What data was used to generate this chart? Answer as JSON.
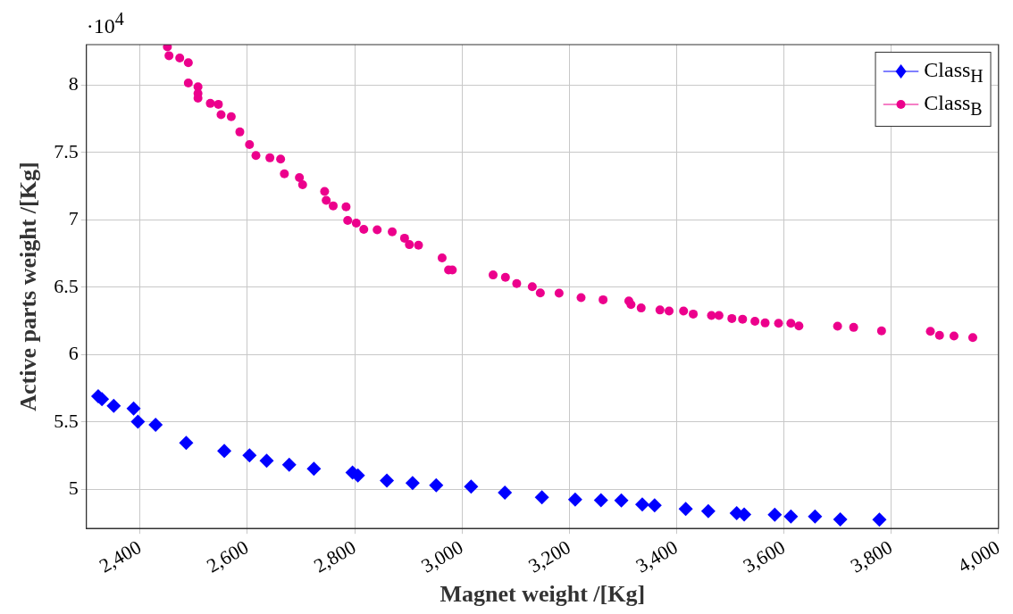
{
  "chart_data": {
    "type": "scatter",
    "xlabel": "Magnet weight /[Kg]",
    "ylabel": "Active parts weight /[Kg]",
    "annotations": [
      "·10$^{4}$"
    ],
    "xlim": [
      2300,
      4000
    ],
    "ylim": [
      4.71,
      8.3
    ],
    "xticks": [
      {
        "value": 2400,
        "label": "2,400"
      },
      {
        "value": 2600,
        "label": "2,600"
      },
      {
        "value": 2800,
        "label": "2,800"
      },
      {
        "value": 3000,
        "label": "3,000"
      },
      {
        "value": 3200,
        "label": "3,200"
      },
      {
        "value": 3400,
        "label": "3,400"
      },
      {
        "value": 3600,
        "label": "3,600"
      },
      {
        "value": 3800,
        "label": "3,800"
      },
      {
        "value": 4000,
        "label": "4,000"
      }
    ],
    "yticks": [
      5,
      5.5,
      6,
      6.5,
      7,
      7.5,
      8
    ],
    "grid": true,
    "legend": "top right",
    "series": [
      {
        "name": "Class$_{H}$",
        "color": "#0000ff",
        "marker": "diamond",
        "x": [
          2322,
          2329,
          2351,
          2388,
          2396,
          2429,
          2486,
          2557,
          2604,
          2636,
          2678,
          2724,
          2796,
          2806,
          2860,
          2908,
          2952,
          3017,
          3080,
          3149,
          3211,
          3259,
          3297,
          3336,
          3359,
          3417,
          3459,
          3512,
          3526,
          3583,
          3613,
          3658,
          3705,
          3778
        ],
        "values": [
          5.691,
          5.669,
          5.62,
          5.6,
          5.503,
          5.479,
          5.345,
          5.285,
          5.253,
          5.212,
          5.183,
          5.153,
          5.125,
          5.103,
          5.065,
          5.047,
          5.03,
          5.021,
          4.976,
          4.941,
          4.924,
          4.92,
          4.918,
          4.888,
          4.881,
          4.855,
          4.838,
          4.823,
          4.814,
          4.812,
          4.799,
          4.799,
          4.778,
          4.775
        ]
      },
      {
        "name": "Class$_{B}$",
        "color": "#ec008c",
        "marker": "circle",
        "x": [
          2451,
          2454,
          2474,
          2490,
          2490,
          2508,
          2508,
          2508,
          2531,
          2546,
          2551,
          2570,
          2586,
          2604,
          2616,
          2642,
          2662,
          2669,
          2697,
          2703,
          2744,
          2747,
          2760,
          2784,
          2787,
          2803,
          2817,
          2842,
          2870,
          2893,
          2902,
          2919,
          2963,
          2975,
          2982,
          3058,
          3081,
          3102,
          3131,
          3146,
          3181,
          3222,
          3263,
          3311,
          3315,
          3334,
          3369,
          3386,
          3413,
          3431,
          3465,
          3479,
          3503,
          3523,
          3546,
          3565,
          3590,
          3613,
          3628,
          3700,
          3730,
          3782,
          3873,
          3890,
          3917,
          3952
        ],
        "values": [
          8.283,
          8.218,
          8.201,
          8.166,
          8.015,
          7.987,
          7.937,
          7.903,
          7.864,
          7.857,
          7.78,
          7.765,
          7.652,
          7.559,
          7.477,
          7.46,
          7.451,
          7.341,
          7.313,
          7.261,
          7.211,
          7.145,
          7.104,
          7.097,
          6.996,
          6.976,
          6.929,
          6.926,
          6.911,
          6.864,
          6.816,
          6.812,
          6.717,
          6.628,
          6.628,
          6.591,
          6.574,
          6.527,
          6.504,
          6.458,
          6.456,
          6.423,
          6.407,
          6.398,
          6.372,
          6.346,
          6.331,
          6.324,
          6.324,
          6.301,
          6.291,
          6.291,
          6.268,
          6.263,
          6.247,
          6.235,
          6.232,
          6.232,
          6.213,
          6.211,
          6.202,
          6.176,
          6.173,
          6.143,
          6.138,
          6.127
        ]
      }
    ]
  }
}
